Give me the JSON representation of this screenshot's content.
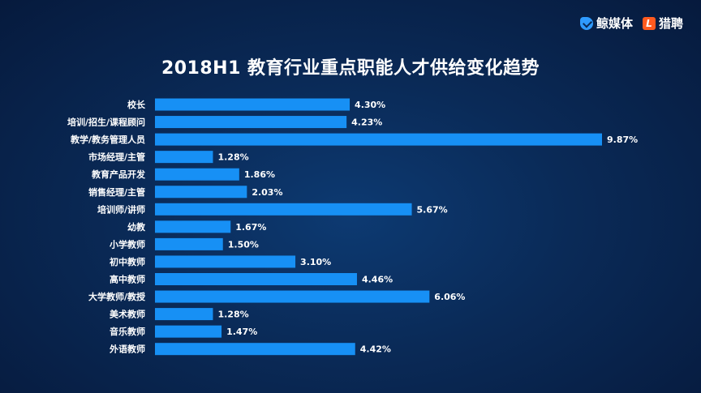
{
  "logos": {
    "brand_left": "鲸媒体",
    "brand_right": "猎聘",
    "brand_right_mark": "L",
    "brand_left_icon": "whale-check-icon",
    "brand_right_icon": "liepin-l-icon"
  },
  "colors": {
    "bar": "#1790f5",
    "text": "#ffffff",
    "background": "#0a2a57"
  },
  "chart_data": {
    "type": "bar",
    "orientation": "horizontal",
    "title": "2018H1 教育行业重点职能人才供给变化趋势",
    "xlabel": "",
    "ylabel": "",
    "xlim": [
      0,
      9.87
    ],
    "grid": false,
    "legend": "none",
    "categories": [
      "校长",
      "培训/招生/课程顾问",
      "教学/教务管理人员",
      "市场经理/主管",
      "教育产品开发",
      "销售经理/主管",
      "培训师/讲师",
      "幼教",
      "小学教师",
      "初中教师",
      "高中教师",
      "大学教师/教授",
      "美术教师",
      "音乐教师",
      "外语教师"
    ],
    "values": [
      4.3,
      4.23,
      9.87,
      1.28,
      1.86,
      2.03,
      5.67,
      1.67,
      1.5,
      3.1,
      4.46,
      6.06,
      1.28,
      1.47,
      4.42
    ],
    "value_labels": [
      "4.30%",
      "4.23%",
      "9.87%",
      "1.28%",
      "1.86%",
      "2.03%",
      "5.67%",
      "1.67%",
      "1.50%",
      "3.10%",
      "4.46%",
      "6.06%",
      "1.28%",
      "1.47%",
      "4.42%"
    ]
  }
}
